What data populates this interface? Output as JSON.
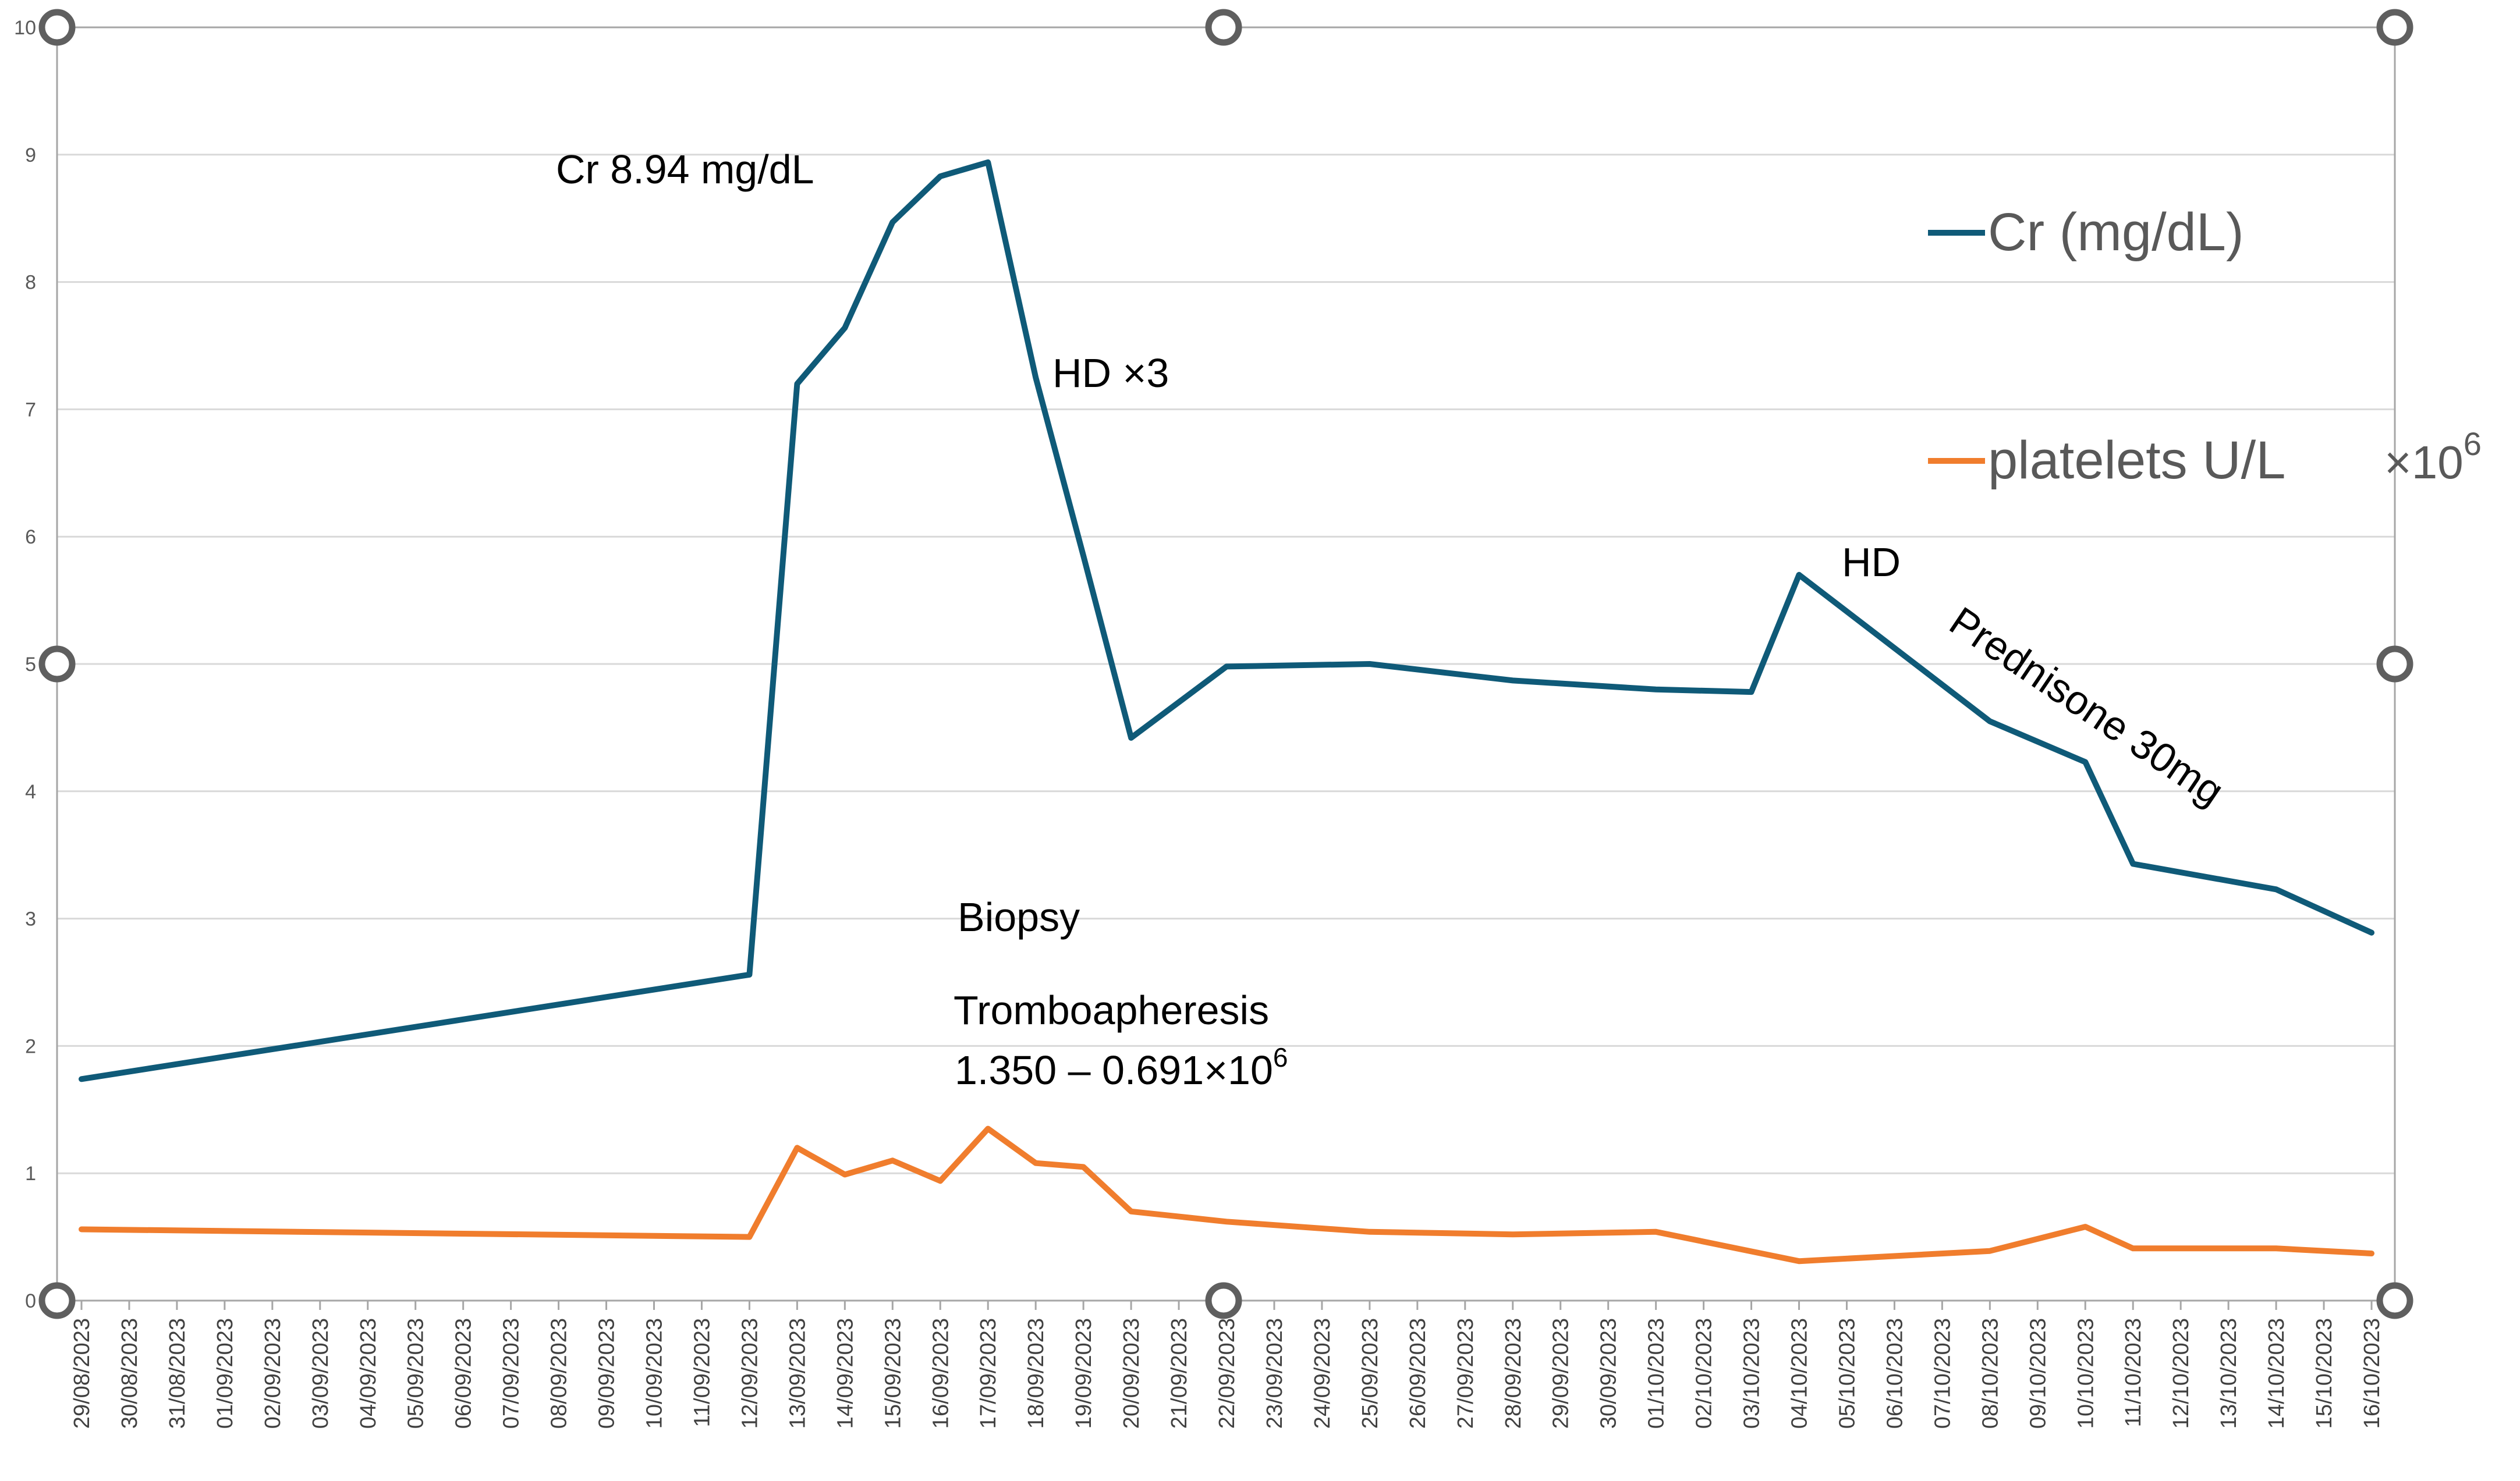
{
  "chart_data": {
    "type": "line",
    "title": "",
    "xlabel": "",
    "ylabel": "",
    "ylim": [
      0,
      10
    ],
    "yticks": [
      "0",
      "1",
      "2",
      "3",
      "4",
      "5",
      "6",
      "7",
      "8",
      "9",
      "10"
    ],
    "grid": true,
    "legend_position": "right",
    "categories": [
      "29/08/2023",
      "30/08/2023",
      "31/08/2023",
      "01/09/2023",
      "02/09/2023",
      "03/09/2023",
      "04/09/2023",
      "05/09/2023",
      "06/09/2023",
      "07/09/2023",
      "08/09/2023",
      "09/09/2023",
      "10/09/2023",
      "11/09/2023",
      "12/09/2023",
      "13/09/2023",
      "14/09/2023",
      "15/09/2023",
      "16/09/2023",
      "17/09/2023",
      "18/09/2023",
      "19/09/2023",
      "20/09/2023",
      "21/09/2023",
      "22/09/2023",
      "23/09/2023",
      "24/09/2023",
      "25/09/2023",
      "26/09/2023",
      "27/09/2023",
      "28/09/2023",
      "29/09/2023",
      "30/09/2023",
      "01/10/2023",
      "02/10/2023",
      "03/10/2023",
      "04/10/2023",
      "05/10/2023",
      "06/10/2023",
      "07/10/2023",
      "08/10/2023",
      "09/10/2023",
      "10/10/2023",
      "11/10/2023",
      "12/10/2023",
      "13/10/2023",
      "14/10/2023",
      "15/10/2023",
      "16/10/2023"
    ],
    "series": [
      {
        "name": "Cr (mg/dL)",
        "color": "#0f5a78",
        "points": [
          {
            "x": "29/08/2023",
            "y": 1.74
          },
          {
            "x": "12/09/2023",
            "y": 2.56
          },
          {
            "x": "13/09/2023",
            "y": 7.2
          },
          {
            "x": "14/09/2023",
            "y": 7.64
          },
          {
            "x": "15/09/2023",
            "y": 8.47
          },
          {
            "x": "16/09/2023",
            "y": 8.83
          },
          {
            "x": "17/09/2023",
            "y": 8.94
          },
          {
            "x": "18/09/2023",
            "y": 7.25
          },
          {
            "x": "19/09/2023",
            "y": 5.85
          },
          {
            "x": "20/09/2023",
            "y": 4.42
          },
          {
            "x": "22/09/2023",
            "y": 4.98
          },
          {
            "x": "25/09/2023",
            "y": 5.0
          },
          {
            "x": "28/09/2023",
            "y": 4.87
          },
          {
            "x": "01/10/2023",
            "y": 4.8
          },
          {
            "x": "03/10/2023",
            "y": 4.78
          },
          {
            "x": "04/10/2023",
            "y": 5.7
          },
          {
            "x": "08/10/2023",
            "y": 4.55
          },
          {
            "x": "10/10/2023",
            "y": 4.23
          },
          {
            "x": "11/10/2023",
            "y": 3.43
          },
          {
            "x": "14/10/2023",
            "y": 3.23
          },
          {
            "x": "16/10/2023",
            "y": 2.89
          }
        ]
      },
      {
        "name": "platelets U/L  ×10⁶",
        "color": "#f07d2d",
        "points": [
          {
            "x": "29/08/2023",
            "y": 0.56
          },
          {
            "x": "12/09/2023",
            "y": 0.5
          },
          {
            "x": "13/09/2023",
            "y": 1.2
          },
          {
            "x": "14/09/2023",
            "y": 0.99
          },
          {
            "x": "15/09/2023",
            "y": 1.1
          },
          {
            "x": "16/09/2023",
            "y": 0.94
          },
          {
            "x": "17/09/2023",
            "y": 1.35
          },
          {
            "x": "18/09/2023",
            "y": 1.08
          },
          {
            "x": "19/09/2023",
            "y": 1.05
          },
          {
            "x": "20/09/2023",
            "y": 0.7
          },
          {
            "x": "22/09/2023",
            "y": 0.62
          },
          {
            "x": "25/09/2023",
            "y": 0.54
          },
          {
            "x": "28/09/2023",
            "y": 0.52
          },
          {
            "x": "01/10/2023",
            "y": 0.54
          },
          {
            "x": "04/10/2023",
            "y": 0.31
          },
          {
            "x": "08/10/2023",
            "y": 0.39
          },
          {
            "x": "10/10/2023",
            "y": 0.58
          },
          {
            "x": "11/10/2023",
            "y": 0.41
          },
          {
            "x": "14/10/2023",
            "y": 0.41
          },
          {
            "x": "16/10/2023",
            "y": 0.37
          }
        ]
      }
    ],
    "legend": [
      {
        "label": "Cr (mg/dL)",
        "color": "#0f5a78"
      },
      {
        "label": "platelets U/L",
        "suffix": "×10",
        "exponent": "6",
        "color": "#f07d2d"
      }
    ],
    "annotations": [
      {
        "id": "cr-peak",
        "text": "Cr 8.94 mg/dL"
      },
      {
        "id": "hd-x3",
        "text": "HD ×3"
      },
      {
        "id": "hd",
        "text": "HD"
      },
      {
        "id": "prednisone",
        "text": "Prednisone 30mg"
      },
      {
        "id": "biopsy",
        "text": "Biopsy"
      },
      {
        "id": "tromboapheresis",
        "text": "Tromboapheresis"
      },
      {
        "id": "platelet-range",
        "text": "1.350 – 0.691×10",
        "exponent": "6"
      }
    ]
  }
}
